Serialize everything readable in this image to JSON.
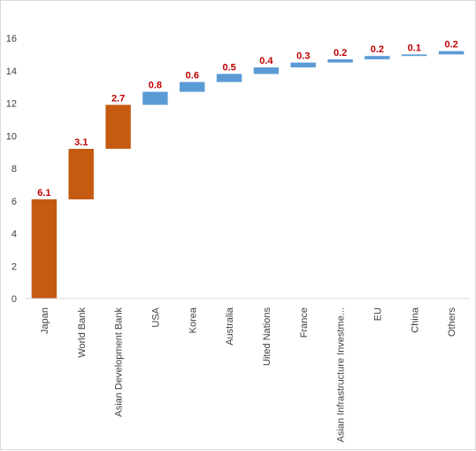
{
  "chart_data": {
    "type": "bar",
    "subtype": "waterfall",
    "title": "",
    "xlabel": "",
    "ylabel": "",
    "ylim": [
      0,
      16
    ],
    "yticks": [
      0,
      2,
      4,
      6,
      8,
      10,
      12,
      14,
      16
    ],
    "grid": false,
    "legend": "none",
    "categories": [
      "Japan",
      "World Bank",
      "Asian Development Bank",
      "USA",
      "Korea",
      "Australia",
      "Uited Nations",
      "France",
      "Asian Infrastructure Investme...",
      "EU",
      "China",
      "Others"
    ],
    "values": [
      6.1,
      3.1,
      2.7,
      0.8,
      0.6,
      0.5,
      0.4,
      0.3,
      0.2,
      0.2,
      0.1,
      0.2
    ],
    "data_labels": [
      "6.1",
      "3.1",
      "2.7",
      "0.8",
      "0.6",
      "0.5",
      "0.4",
      "0.3",
      "0.2",
      "0.2",
      "0.1",
      "0.2"
    ],
    "colors": [
      "#c55a11",
      "#c55a11",
      "#c55a11",
      "#5b9bd5",
      "#5b9bd5",
      "#5b9bd5",
      "#5b9bd5",
      "#5b9bd5",
      "#5b9bd5",
      "#5b9bd5",
      "#5b9bd5",
      "#5b9bd5"
    ],
    "label_color": "#c00000"
  }
}
